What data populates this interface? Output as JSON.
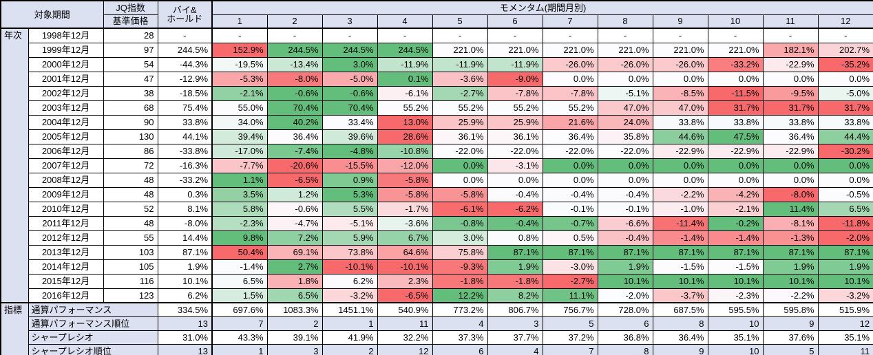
{
  "table": {
    "header": {
      "period": "対象期間",
      "jq_index": "JQ指数",
      "base_price": "基準価格",
      "buy_hold_line1": "バイ&",
      "buy_hold_line2": "ホールド",
      "momentum_title": "モメンタム(期間月別)",
      "month_columns": [
        "1",
        "2",
        "3",
        "4",
        "5",
        "6",
        "7",
        "8",
        "9",
        "10",
        "11",
        "12"
      ]
    },
    "group_labels": {
      "years": "年次",
      "indicators": "指標"
    },
    "year_rows": [
      {
        "period": "1998年12月",
        "jq": "28",
        "buy_hold": "-",
        "momentum": [
          "-",
          "-",
          "-",
          "-",
          "-",
          "-",
          "-",
          "-",
          "-",
          "-",
          "-",
          "-"
        ]
      },
      {
        "period": "1999年12月",
        "jq": "97",
        "buy_hold": "244.5%",
        "momentum": [
          "152.9%",
          "244.5%",
          "244.5%",
          "244.5%",
          "221.0%",
          "221.0%",
          "221.0%",
          "221.0%",
          "221.0%",
          "221.0%",
          "182.1%",
          "202.7%"
        ]
      },
      {
        "period": "2000年12月",
        "jq": "54",
        "buy_hold": "-44.3%",
        "momentum": [
          "-19.5%",
          "-13.4%",
          "3.0%",
          "-11.9%",
          "-11.9%",
          "-11.9%",
          "-26.0%",
          "-26.0%",
          "-26.0%",
          "-33.2%",
          "-22.9%",
          "-35.2%"
        ]
      },
      {
        "period": "2001年12月",
        "jq": "47",
        "buy_hold": "-12.9%",
        "momentum": [
          "-5.3%",
          "-8.0%",
          "-5.0%",
          "0.1%",
          "-3.6%",
          "-9.0%",
          "0.0%",
          "0.0%",
          "0.0%",
          "0.0%",
          "0.0%",
          "0.0%"
        ]
      },
      {
        "period": "2002年12月",
        "jq": "38",
        "buy_hold": "-18.5%",
        "momentum": [
          "-2.1%",
          "-0.6%",
          "-0.6%",
          "-6.1%",
          "-2.7%",
          "-7.8%",
          "-7.8%",
          "-5.1%",
          "-8.5%",
          "-11.5%",
          "-9.5%",
          "-5.0%"
        ]
      },
      {
        "period": "2003年12月",
        "jq": "68",
        "buy_hold": "75.4%",
        "momentum": [
          "55.0%",
          "70.4%",
          "70.4%",
          "55.2%",
          "55.2%",
          "55.2%",
          "55.2%",
          "47.0%",
          "47.0%",
          "31.7%",
          "31.7%",
          "31.7%"
        ]
      },
      {
        "period": "2004年12月",
        "jq": "90",
        "buy_hold": "33.8%",
        "momentum": [
          "34.0%",
          "40.2%",
          "33.4%",
          "13.0%",
          "25.9%",
          "25.9%",
          "21.6%",
          "24.0%",
          "33.8%",
          "33.8%",
          "33.8%",
          "33.8%"
        ]
      },
      {
        "period": "2005年12月",
        "jq": "130",
        "buy_hold": "44.1%",
        "momentum": [
          "39.4%",
          "36.4%",
          "39.6%",
          "28.6%",
          "36.1%",
          "36.1%",
          "36.4%",
          "35.8%",
          "44.6%",
          "47.5%",
          "36.4%",
          "44.4%"
        ]
      },
      {
        "period": "2006年12月",
        "jq": "86",
        "buy_hold": "-33.8%",
        "momentum": [
          "-17.0%",
          "-7.4%",
          "-4.8%",
          "-10.8%",
          "-22.0%",
          "-22.0%",
          "-22.0%",
          "-22.0%",
          "-22.9%",
          "-22.9%",
          "-22.9%",
          "-30.2%"
        ]
      },
      {
        "period": "2007年12月",
        "jq": "72",
        "buy_hold": "-16.3%",
        "momentum": [
          "-7.7%",
          "-20.6%",
          "-15.5%",
          "-12.0%",
          "0.0%",
          "-3.1%",
          "0.0%",
          "0.0%",
          "0.0%",
          "0.0%",
          "0.0%",
          "0.0%"
        ]
      },
      {
        "period": "2008年12月",
        "jq": "48",
        "buy_hold": "-33.2%",
        "momentum": [
          "1.1%",
          "-6.5%",
          "0.9%",
          "-5.8%",
          "0.0%",
          "0.0%",
          "0.0%",
          "0.0%",
          "0.0%",
          "0.0%",
          "0.0%",
          "0.0%"
        ]
      },
      {
        "period": "2009年12月",
        "jq": "48",
        "buy_hold": "0.3%",
        "momentum": [
          "3.5%",
          "1.2%",
          "5.3%",
          "-5.8%",
          "-5.8%",
          "-0.4%",
          "-0.4%",
          "-0.4%",
          "-2.2%",
          "-4.2%",
          "-8.0%",
          "-0.5%"
        ]
      },
      {
        "period": "2010年12月",
        "jq": "52",
        "buy_hold": "8.1%",
        "momentum": [
          "5.8%",
          "-0.6%",
          "5.5%",
          "-1.7%",
          "-6.1%",
          "-6.2%",
          "-0.1%",
          "-0.1%",
          "-1.0%",
          "-2.1%",
          "11.4%",
          "6.5%"
        ]
      },
      {
        "period": "2011年12月",
        "jq": "48",
        "buy_hold": "-8.0%",
        "momentum": [
          "-2.3%",
          "-4.7%",
          "-5.1%",
          "-3.6%",
          "-0.8%",
          "-0.4%",
          "-0.7%",
          "-6.6%",
          "-11.4%",
          "-0.2%",
          "-8.1%",
          "-11.8%"
        ]
      },
      {
        "period": "2012年12月",
        "jq": "55",
        "buy_hold": "14.4%",
        "momentum": [
          "9.8%",
          "7.2%",
          "5.9%",
          "6.7%",
          "3.0%",
          "0.8%",
          "0.5%",
          "-0.4%",
          "-1.4%",
          "-1.4%",
          "-1.3%",
          "-2.0%"
        ]
      },
      {
        "period": "2013年12月",
        "jq": "103",
        "buy_hold": "87.1%",
        "momentum": [
          "50.4%",
          "69.1%",
          "73.8%",
          "64.6%",
          "75.8%",
          "87.1%",
          "87.1%",
          "87.1%",
          "87.1%",
          "87.1%",
          "87.1%",
          "87.1%"
        ]
      },
      {
        "period": "2014年12月",
        "jq": "105",
        "buy_hold": "1.9%",
        "momentum": [
          "-1.4%",
          "2.7%",
          "-10.1%",
          "-10.1%",
          "-9.3%",
          "1.9%",
          "-3.0%",
          "1.9%",
          "-1.5%",
          "-1.5%",
          "1.9%",
          "1.9%"
        ]
      },
      {
        "period": "2015年12月",
        "jq": "116",
        "buy_hold": "10.1%",
        "momentum": [
          "6.5%",
          "1.8%",
          "6.2%",
          "2.3%",
          "-1.8%",
          "-1.8%",
          "-2.7%",
          "10.1%",
          "10.1%",
          "10.1%",
          "10.1%",
          "10.1%"
        ]
      },
      {
        "period": "2016年12月",
        "jq": "123",
        "buy_hold": "6.2%",
        "momentum": [
          "1.5%",
          "6.5%",
          "-3.2%",
          "-6.5%",
          "12.2%",
          "8.2%",
          "11.1%",
          "-2.0%",
          "-3.7%",
          "-2.3%",
          "-2.2%",
          "-3.2%"
        ]
      }
    ],
    "indicator_rows": [
      {
        "label": "通算パフォーマンス",
        "buy_hold": "334.5%",
        "values": [
          "697.6%",
          "1083.3%",
          "1451.1%",
          "540.9%",
          "773.2%",
          "806.7%",
          "756.7%",
          "728.0%",
          "687.5%",
          "595.5%",
          "595.8%",
          "515.9%"
        ],
        "shaded": false
      },
      {
        "label": "通算パフォーマンス順位",
        "buy_hold": "13",
        "values": [
          "7",
          "2",
          "1",
          "11",
          "4",
          "3",
          "5",
          "6",
          "8",
          "10",
          "9",
          "12"
        ],
        "shaded": true
      },
      {
        "label": "シャープレシオ",
        "buy_hold": "31.0%",
        "values": [
          "43.3%",
          "39.1%",
          "41.9%",
          "32.2%",
          "37.3%",
          "37.7%",
          "37.2%",
          "36.8%",
          "36.4%",
          "35.1%",
          "37.6%",
          "35.1%"
        ],
        "shaded": false
      },
      {
        "label": "シャープレシオ順位",
        "buy_hold": "13",
        "values": [
          "1",
          "3",
          "2",
          "12",
          "6",
          "4",
          "7",
          "8",
          "9",
          "10",
          "5",
          "11"
        ],
        "shaded": true
      }
    ]
  },
  "colors": {
    "header_bg": "#dce1f1",
    "scale_min": "#f8696b",
    "scale_mid": "#fcfcff",
    "scale_max": "#63be7b",
    "grid": "#000000"
  }
}
